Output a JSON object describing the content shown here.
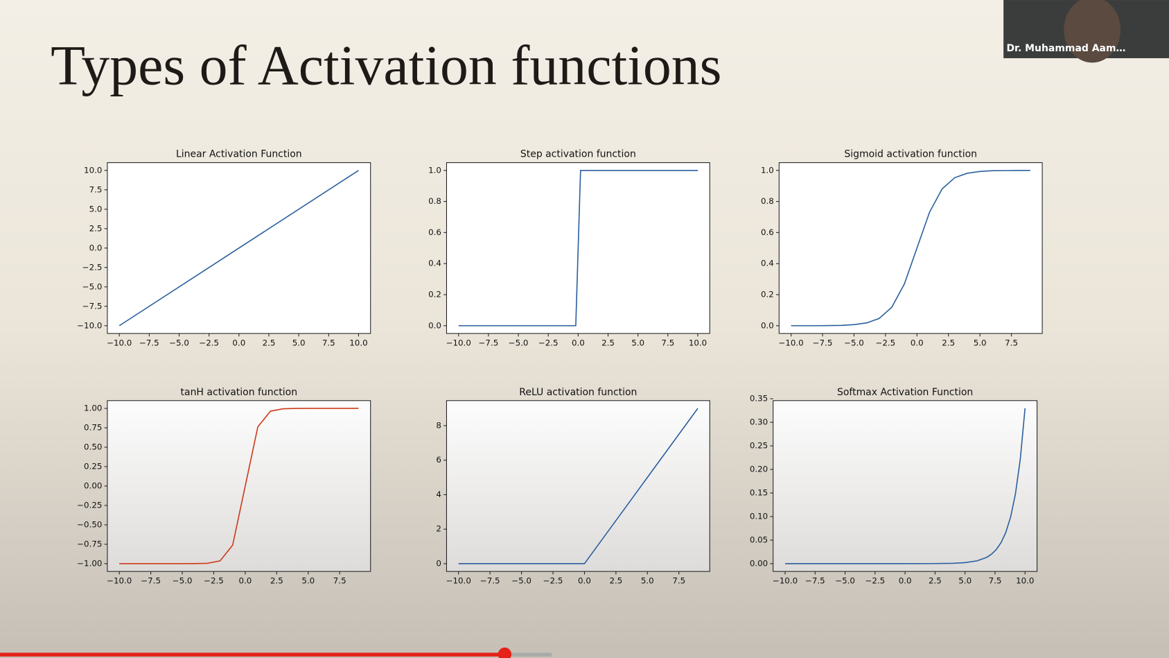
{
  "title": "Types of Activation functions",
  "presenter": "Dr. Muhammad Aam…",
  "chart_data": [
    {
      "type": "line",
      "title": "Linear Activation Function",
      "x": [
        -10,
        10
      ],
      "values": [
        -10,
        10
      ],
      "color": "#2a5f9e",
      "xlim": [
        -11,
        11
      ],
      "ylim": [
        -11,
        11
      ],
      "xticks": [
        {
          "value": -10,
          "label": "−10.0"
        },
        {
          "value": -7.5,
          "label": "−7.5"
        },
        {
          "value": -5,
          "label": "−5.0"
        },
        {
          "value": -2.5,
          "label": "−2.5"
        },
        {
          "value": 0,
          "label": "0.0"
        },
        2.5,
        {
          "value": 5,
          "label": "5.0"
        },
        7.5,
        {
          "value": 10,
          "label": "10.0"
        }
      ],
      "yticks": [
        {
          "value": -10,
          "label": "−10.0"
        },
        {
          "value": -7.5,
          "label": "−7.5"
        },
        {
          "value": -5,
          "label": "−5.0"
        },
        {
          "value": -2.5,
          "label": "−2.5"
        },
        {
          "value": 0,
          "label": "0.0"
        },
        2.5,
        {
          "value": 5,
          "label": "5.0"
        },
        7.5,
        {
          "value": 10,
          "label": "10.0"
        }
      ]
    },
    {
      "type": "line",
      "title": "Step activation function",
      "x": [
        -10,
        -0.2,
        0.2,
        10
      ],
      "values": [
        0,
        0,
        1,
        1
      ],
      "color": "#2a5f9e",
      "xlim": [
        -11,
        11
      ],
      "ylim": [
        -0.05,
        1.05
      ],
      "xticks": [
        {
          "value": -10,
          "label": "−10.0"
        },
        {
          "value": -7.5,
          "label": "−7.5"
        },
        {
          "value": -5,
          "label": "−5.0"
        },
        {
          "value": -2.5,
          "label": "−2.5"
        },
        {
          "value": 0,
          "label": "0.0"
        },
        2.5,
        {
          "value": 5,
          "label": "5.0"
        },
        7.5,
        {
          "value": 10,
          "label": "10.0"
        }
      ],
      "yticks": [
        {
          "value": 0,
          "label": "0.0"
        },
        0.2,
        0.4,
        0.6,
        0.8,
        {
          "value": 1,
          "label": "1.0"
        }
      ]
    },
    {
      "type": "line",
      "title": "Sigmoid activation function",
      "x": [
        -10,
        -9,
        -8,
        -7,
        -6,
        -5,
        -4,
        -3,
        -2,
        -1,
        0,
        1,
        2,
        3,
        4,
        5,
        6,
        7,
        8,
        9
      ],
      "values": [
        0,
        0,
        0,
        0.001,
        0.002,
        0.007,
        0.018,
        0.047,
        0.119,
        0.269,
        0.5,
        0.731,
        0.881,
        0.953,
        0.982,
        0.993,
        0.998,
        0.999,
        1,
        1
      ],
      "color": "#2a5f9e",
      "xlim": [
        -10.95,
        9.95
      ],
      "ylim": [
        -0.05,
        1.05
      ],
      "xticks": [
        {
          "value": -10,
          "label": "−10.0"
        },
        {
          "value": -7.5,
          "label": "−7.5"
        },
        {
          "value": -5,
          "label": "−5.0"
        },
        {
          "value": -2.5,
          "label": "−2.5"
        },
        {
          "value": 0,
          "label": "0.0"
        },
        2.5,
        {
          "value": 5,
          "label": "5.0"
        },
        7.5
      ],
      "yticks": [
        {
          "value": 0,
          "label": "0.0"
        },
        0.2,
        0.4,
        0.6,
        0.8,
        {
          "value": 1,
          "label": "1.0"
        }
      ]
    },
    {
      "type": "line",
      "title": "tanH activation function",
      "x": [
        -10,
        -9,
        -8,
        -7,
        -6,
        -5,
        -4,
        -3,
        -2,
        -1,
        0,
        1,
        2,
        3,
        4,
        5,
        6,
        7,
        8,
        9
      ],
      "values": [
        -1,
        -1,
        -1,
        -1,
        -1,
        -1,
        -0.999,
        -0.995,
        -0.964,
        -0.762,
        0,
        0.762,
        0.964,
        0.995,
        0.999,
        1,
        1,
        1,
        1,
        1
      ],
      "color": "#cc3a1a",
      "xlim": [
        -10.95,
        9.95
      ],
      "ylim": [
        -1.1,
        1.1
      ],
      "xticks": [
        {
          "value": -10,
          "label": "−10.0"
        },
        {
          "value": -7.5,
          "label": "−7.5"
        },
        {
          "value": -5,
          "label": "−5.0"
        },
        {
          "value": -2.5,
          "label": "−2.5"
        },
        {
          "value": 0,
          "label": "0.0"
        },
        2.5,
        {
          "value": 5,
          "label": "5.0"
        },
        7.5
      ],
      "yticks": [
        {
          "value": -1,
          "label": "−1.00"
        },
        {
          "value": -0.75,
          "label": "−0.75"
        },
        {
          "value": -0.5,
          "label": "−0.50"
        },
        {
          "value": -0.25,
          "label": "−0.25"
        },
        {
          "value": 0,
          "label": "0.00"
        },
        0.25,
        {
          "value": 0.5,
          "label": "0.50"
        },
        0.75,
        {
          "value": 1,
          "label": "1.00"
        }
      ]
    },
    {
      "type": "line",
      "title": "ReLU activation function",
      "x": [
        -10,
        -9,
        -8,
        -7,
        -6,
        -5,
        -4,
        -3,
        -2,
        -1,
        0,
        1,
        2,
        3,
        4,
        5,
        6,
        7,
        8,
        9
      ],
      "values": [
        0,
        0,
        0,
        0,
        0,
        0,
        0,
        0,
        0,
        0,
        0,
        1,
        2,
        3,
        4,
        5,
        6,
        7,
        8,
        9
      ],
      "color": "#2a5f9e",
      "xlim": [
        -10.95,
        9.95
      ],
      "ylim": [
        -0.45,
        9.45
      ],
      "xticks": [
        {
          "value": -10,
          "label": "−10.0"
        },
        {
          "value": -7.5,
          "label": "−7.5"
        },
        {
          "value": -5,
          "label": "−5.0"
        },
        {
          "value": -2.5,
          "label": "−2.5"
        },
        {
          "value": 0,
          "label": "0.0"
        },
        2.5,
        {
          "value": 5,
          "label": "5.0"
        },
        7.5
      ],
      "yticks": [
        0,
        2,
        4,
        6,
        8
      ]
    },
    {
      "type": "line",
      "title": "Softmax Activation Function",
      "x": [
        -10,
        -5,
        0,
        2,
        4,
        5,
        6,
        6.8,
        7.2,
        7.6,
        8,
        8.4,
        8.8,
        9.2,
        9.6,
        10
      ],
      "values": [
        0,
        0,
        0,
        0.0001,
        0.0008,
        0.0022,
        0.006,
        0.0134,
        0.02,
        0.0299,
        0.0446,
        0.0666,
        0.0993,
        0.1481,
        0.221,
        0.3297
      ],
      "color": "#2a5f9e",
      "xlim": [
        -11,
        11
      ],
      "ylim": [
        -0.0165,
        0.346
      ],
      "xticks": [
        {
          "value": -10,
          "label": "−10.0"
        },
        {
          "value": -7.5,
          "label": "−7.5"
        },
        {
          "value": -5,
          "label": "−5.0"
        },
        {
          "value": -2.5,
          "label": "−2.5"
        },
        {
          "value": 0,
          "label": "0.0"
        },
        2.5,
        {
          "value": 5,
          "label": "5.0"
        },
        7.5,
        {
          "value": 10,
          "label": "10.0"
        }
      ],
      "yticks": [
        {
          "value": 0,
          "label": "0.00"
        },
        0.05,
        {
          "value": 0.1,
          "label": "0.10"
        },
        0.15,
        {
          "value": 0.2,
          "label": "0.20"
        },
        0.25,
        {
          "value": 0.3,
          "label": "0.30"
        },
        0.35
      ]
    }
  ]
}
